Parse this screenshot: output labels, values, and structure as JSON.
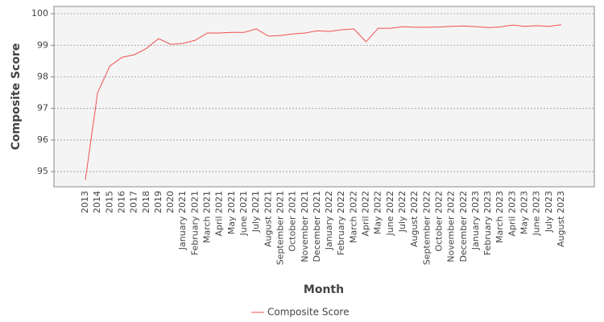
{
  "chart_data": {
    "type": "line",
    "x_label": "Month",
    "y_label": "Composite Score",
    "categories": [
      "2013",
      "2014",
      "2015",
      "2016",
      "2017",
      "2018",
      "2019",
      "2020",
      "January 2021",
      "February 2021",
      "March 2021",
      "April 2021",
      "May 2021",
      "June 2021",
      "July 2021",
      "August 2021",
      "September 2021",
      "October 2021",
      "November 2021",
      "December 2021",
      "January 2022",
      "February 2022",
      "March 2022",
      "April 2022",
      "May 2022",
      "June 2022",
      "July 2022",
      "August 2022",
      "September 2022",
      "October 2022",
      "November 2022",
      "December 2022",
      "January 2023",
      "February 2023",
      "March 2023",
      "April 2023",
      "May 2023",
      "June 2023",
      "July 2023",
      "August 2023"
    ],
    "series": [
      {
        "name": "Composite Score",
        "color": "#f05050",
        "values": [
          94.74,
          97.5,
          98.34,
          98.62,
          98.7,
          98.9,
          99.21,
          99.03,
          99.06,
          99.16,
          99.39,
          99.39,
          99.41,
          99.41,
          99.52,
          99.29,
          99.31,
          99.36,
          99.39,
          99.46,
          99.44,
          99.49,
          99.52,
          99.11,
          99.54,
          99.54,
          99.59,
          99.57,
          99.57,
          99.58,
          99.6,
          99.61,
          99.59,
          99.56,
          99.58,
          99.64,
          99.6,
          99.62,
          99.6,
          99.65
        ]
      }
    ],
    "ylim": [
      94.52,
      100.23
    ],
    "yticks": [
      95,
      96,
      97,
      98,
      99,
      100
    ],
    "grid": true,
    "legend": "bottom"
  }
}
